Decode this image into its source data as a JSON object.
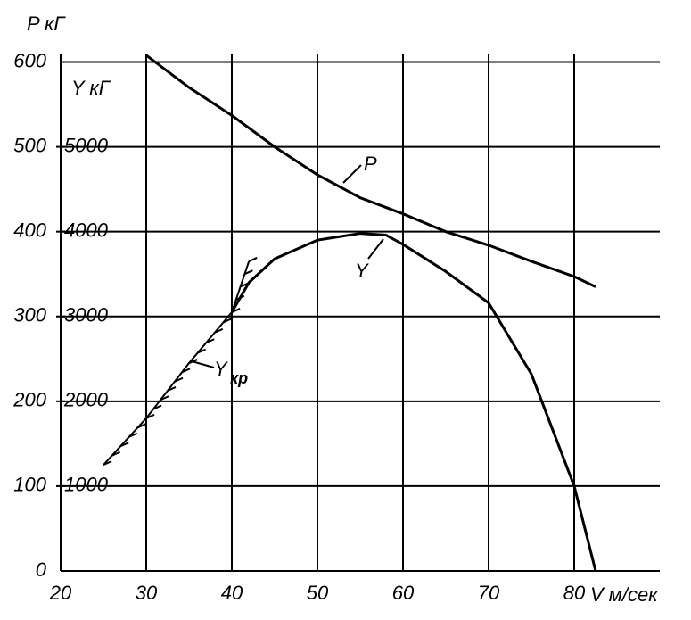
{
  "chart_data": {
    "type": "line",
    "y_label": "P кГ",
    "y2_label": "Y кГ",
    "x_label": "V м/сек",
    "xlim": [
      20,
      90
    ],
    "xticks": [
      20,
      30,
      40,
      50,
      60,
      70,
      80
    ],
    "ylim": [
      0,
      610
    ],
    "yticks": [
      0,
      100,
      200,
      300,
      400,
      500,
      600
    ],
    "y2lim": [
      0,
      6100
    ],
    "y2ticks": [
      1000,
      2000,
      3000,
      4000,
      5000
    ],
    "grid": true,
    "series": [
      {
        "name": "P",
        "color": "#000000",
        "x": [
          30,
          35,
          40,
          45,
          50,
          55,
          60,
          65,
          70,
          75,
          80,
          82.5
        ],
        "values": [
          608,
          570,
          537,
          500,
          467,
          440,
          421,
          400,
          384,
          365,
          347,
          335
        ]
      },
      {
        "name": "Y",
        "color": "#000000",
        "axis": "y2",
        "x": [
          40,
          42,
          45,
          50,
          55,
          58,
          60,
          65,
          70,
          75,
          80,
          82.5
        ],
        "values": [
          3050,
          3400,
          3680,
          3900,
          3980,
          3960,
          3850,
          3530,
          3160,
          2320,
          1000,
          0
        ]
      },
      {
        "name": "Y",
        "name_sub": "кр",
        "color": "#000000",
        "axis": "y2",
        "hatched": true,
        "x": [
          25,
          30,
          35,
          40,
          42
        ],
        "values": [
          1250,
          1800,
          2450,
          3050,
          3650
        ]
      }
    ]
  }
}
